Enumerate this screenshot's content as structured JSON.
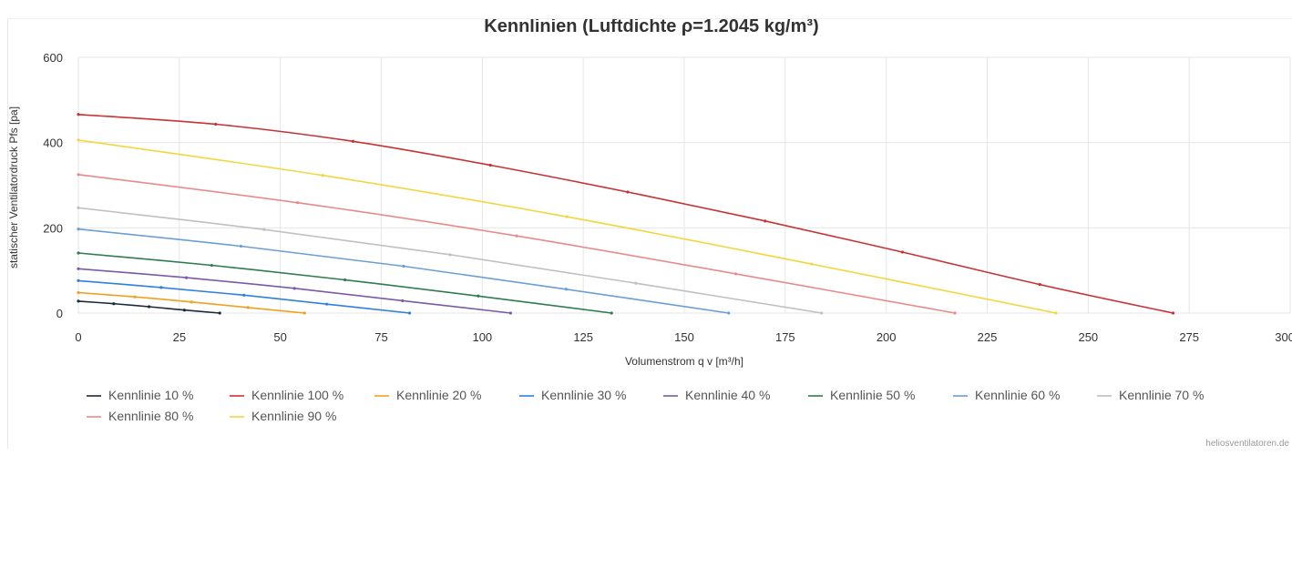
{
  "chart_data": {
    "type": "line",
    "title": "Kennlinien (Luftdichte ρ=1.2045 kg/m³)",
    "xlabel": "Volumenstrom q v [m³/h]",
    "ylabel": "statischer Ventilatordruck Pfs [pa]",
    "xlim": [
      0,
      300
    ],
    "ylim": [
      0,
      600
    ],
    "x_ticks": [
      0,
      25,
      50,
      75,
      100,
      125,
      150,
      175,
      200,
      225,
      250,
      275,
      300
    ],
    "y_ticks": [
      0,
      200,
      400,
      600
    ],
    "grid": true,
    "legend_position": "bottom",
    "series": [
      {
        "name": "Kennlinie 10 %",
        "color": "#1b2a3a",
        "x": [
          0,
          8.75,
          17.5,
          26.25,
          35
        ],
        "y": [
          28,
          22,
          15,
          7,
          0
        ]
      },
      {
        "name": "Kennlinie 100 %",
        "color": "#c83232",
        "x": [
          0,
          34,
          68,
          102,
          136,
          170,
          204,
          238,
          271
        ],
        "y": [
          466,
          443,
          403,
          347,
          284,
          216,
          143,
          67,
          0
        ]
      },
      {
        "name": "Kennlinie 20 %",
        "color": "#f0a020",
        "x": [
          0,
          14,
          28,
          42,
          56
        ],
        "y": [
          48,
          38,
          26,
          13,
          0
        ]
      },
      {
        "name": "Kennlinie 30 %",
        "color": "#2f7fe0",
        "x": [
          0,
          20.5,
          41,
          61.5,
          82
        ],
        "y": [
          76,
          60,
          42,
          21,
          0
        ]
      },
      {
        "name": "Kennlinie 40 %",
        "color": "#7a5aa8",
        "x": [
          0,
          26.75,
          53.5,
          80.25,
          107
        ],
        "y": [
          104,
          83,
          58,
          29,
          0
        ]
      },
      {
        "name": "Kennlinie 50 %",
        "color": "#2e7d4f",
        "x": [
          0,
          33,
          66,
          99,
          132
        ],
        "y": [
          141,
          112,
          78,
          40,
          0
        ]
      },
      {
        "name": "Kennlinie 60 %",
        "color": "#6a9fd4",
        "x": [
          0,
          40.25,
          80.5,
          120.75,
          161
        ],
        "y": [
          197,
          157,
          110,
          56,
          0
        ]
      },
      {
        "name": "Kennlinie 70 %",
        "color": "#c0c0c0",
        "x": [
          0,
          46,
          92,
          138,
          184
        ],
        "y": [
          247,
          196,
          137,
          70,
          0
        ]
      },
      {
        "name": "Kennlinie 80 %",
        "color": "#e88a8a",
        "x": [
          0,
          54.25,
          108.5,
          162.75,
          217
        ],
        "y": [
          325,
          259,
          181,
          92,
          0
        ]
      },
      {
        "name": "Kennlinie 90 %",
        "color": "#f2d640",
        "x": [
          0,
          60.5,
          121,
          181.5,
          242
        ],
        "y": [
          406,
          323,
          226,
          115,
          0
        ]
      }
    ]
  },
  "watermark": "heliosventilatoren.de"
}
